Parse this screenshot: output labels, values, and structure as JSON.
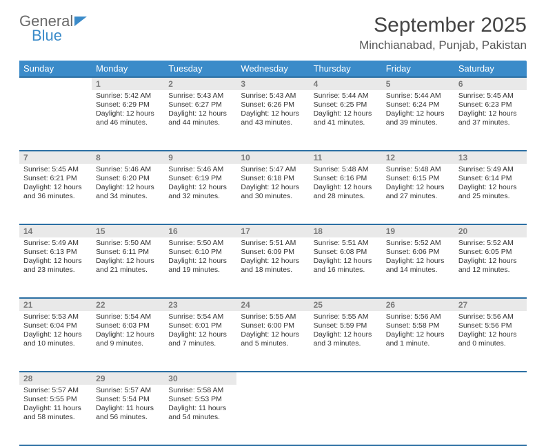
{
  "brand": {
    "word1": "General",
    "word2": "Blue"
  },
  "header": {
    "title": "September 2025",
    "location": "Minchianabad, Punjab, Pakistan"
  },
  "colors": {
    "header_bg": "#3b8bc9",
    "header_border": "#2b6fa3",
    "daynum_bg": "#e9e9e9",
    "daynum_text": "#7a7a7a",
    "body_text": "#333333"
  },
  "weekdays": [
    "Sunday",
    "Monday",
    "Tuesday",
    "Wednesday",
    "Thursday",
    "Friday",
    "Saturday"
  ],
  "weeks": [
    [
      null,
      {
        "n": "1",
        "sunrise": "Sunrise: 5:42 AM",
        "sunset": "Sunset: 6:29 PM",
        "day1": "Daylight: 12 hours",
        "day2": "and 46 minutes."
      },
      {
        "n": "2",
        "sunrise": "Sunrise: 5:43 AM",
        "sunset": "Sunset: 6:27 PM",
        "day1": "Daylight: 12 hours",
        "day2": "and 44 minutes."
      },
      {
        "n": "3",
        "sunrise": "Sunrise: 5:43 AM",
        "sunset": "Sunset: 6:26 PM",
        "day1": "Daylight: 12 hours",
        "day2": "and 43 minutes."
      },
      {
        "n": "4",
        "sunrise": "Sunrise: 5:44 AM",
        "sunset": "Sunset: 6:25 PM",
        "day1": "Daylight: 12 hours",
        "day2": "and 41 minutes."
      },
      {
        "n": "5",
        "sunrise": "Sunrise: 5:44 AM",
        "sunset": "Sunset: 6:24 PM",
        "day1": "Daylight: 12 hours",
        "day2": "and 39 minutes."
      },
      {
        "n": "6",
        "sunrise": "Sunrise: 5:45 AM",
        "sunset": "Sunset: 6:23 PM",
        "day1": "Daylight: 12 hours",
        "day2": "and 37 minutes."
      }
    ],
    [
      {
        "n": "7",
        "sunrise": "Sunrise: 5:45 AM",
        "sunset": "Sunset: 6:21 PM",
        "day1": "Daylight: 12 hours",
        "day2": "and 36 minutes."
      },
      {
        "n": "8",
        "sunrise": "Sunrise: 5:46 AM",
        "sunset": "Sunset: 6:20 PM",
        "day1": "Daylight: 12 hours",
        "day2": "and 34 minutes."
      },
      {
        "n": "9",
        "sunrise": "Sunrise: 5:46 AM",
        "sunset": "Sunset: 6:19 PM",
        "day1": "Daylight: 12 hours",
        "day2": "and 32 minutes."
      },
      {
        "n": "10",
        "sunrise": "Sunrise: 5:47 AM",
        "sunset": "Sunset: 6:18 PM",
        "day1": "Daylight: 12 hours",
        "day2": "and 30 minutes."
      },
      {
        "n": "11",
        "sunrise": "Sunrise: 5:48 AM",
        "sunset": "Sunset: 6:16 PM",
        "day1": "Daylight: 12 hours",
        "day2": "and 28 minutes."
      },
      {
        "n": "12",
        "sunrise": "Sunrise: 5:48 AM",
        "sunset": "Sunset: 6:15 PM",
        "day1": "Daylight: 12 hours",
        "day2": "and 27 minutes."
      },
      {
        "n": "13",
        "sunrise": "Sunrise: 5:49 AM",
        "sunset": "Sunset: 6:14 PM",
        "day1": "Daylight: 12 hours",
        "day2": "and 25 minutes."
      }
    ],
    [
      {
        "n": "14",
        "sunrise": "Sunrise: 5:49 AM",
        "sunset": "Sunset: 6:13 PM",
        "day1": "Daylight: 12 hours",
        "day2": "and 23 minutes."
      },
      {
        "n": "15",
        "sunrise": "Sunrise: 5:50 AM",
        "sunset": "Sunset: 6:11 PM",
        "day1": "Daylight: 12 hours",
        "day2": "and 21 minutes."
      },
      {
        "n": "16",
        "sunrise": "Sunrise: 5:50 AM",
        "sunset": "Sunset: 6:10 PM",
        "day1": "Daylight: 12 hours",
        "day2": "and 19 minutes."
      },
      {
        "n": "17",
        "sunrise": "Sunrise: 5:51 AM",
        "sunset": "Sunset: 6:09 PM",
        "day1": "Daylight: 12 hours",
        "day2": "and 18 minutes."
      },
      {
        "n": "18",
        "sunrise": "Sunrise: 5:51 AM",
        "sunset": "Sunset: 6:08 PM",
        "day1": "Daylight: 12 hours",
        "day2": "and 16 minutes."
      },
      {
        "n": "19",
        "sunrise": "Sunrise: 5:52 AM",
        "sunset": "Sunset: 6:06 PM",
        "day1": "Daylight: 12 hours",
        "day2": "and 14 minutes."
      },
      {
        "n": "20",
        "sunrise": "Sunrise: 5:52 AM",
        "sunset": "Sunset: 6:05 PM",
        "day1": "Daylight: 12 hours",
        "day2": "and 12 minutes."
      }
    ],
    [
      {
        "n": "21",
        "sunrise": "Sunrise: 5:53 AM",
        "sunset": "Sunset: 6:04 PM",
        "day1": "Daylight: 12 hours",
        "day2": "and 10 minutes."
      },
      {
        "n": "22",
        "sunrise": "Sunrise: 5:54 AM",
        "sunset": "Sunset: 6:03 PM",
        "day1": "Daylight: 12 hours",
        "day2": "and 9 minutes."
      },
      {
        "n": "23",
        "sunrise": "Sunrise: 5:54 AM",
        "sunset": "Sunset: 6:01 PM",
        "day1": "Daylight: 12 hours",
        "day2": "and 7 minutes."
      },
      {
        "n": "24",
        "sunrise": "Sunrise: 5:55 AM",
        "sunset": "Sunset: 6:00 PM",
        "day1": "Daylight: 12 hours",
        "day2": "and 5 minutes."
      },
      {
        "n": "25",
        "sunrise": "Sunrise: 5:55 AM",
        "sunset": "Sunset: 5:59 PM",
        "day1": "Daylight: 12 hours",
        "day2": "and 3 minutes."
      },
      {
        "n": "26",
        "sunrise": "Sunrise: 5:56 AM",
        "sunset": "Sunset: 5:58 PM",
        "day1": "Daylight: 12 hours",
        "day2": "and 1 minute."
      },
      {
        "n": "27",
        "sunrise": "Sunrise: 5:56 AM",
        "sunset": "Sunset: 5:56 PM",
        "day1": "Daylight: 12 hours",
        "day2": "and 0 minutes."
      }
    ],
    [
      {
        "n": "28",
        "sunrise": "Sunrise: 5:57 AM",
        "sunset": "Sunset: 5:55 PM",
        "day1": "Daylight: 11 hours",
        "day2": "and 58 minutes."
      },
      {
        "n": "29",
        "sunrise": "Sunrise: 5:57 AM",
        "sunset": "Sunset: 5:54 PM",
        "day1": "Daylight: 11 hours",
        "day2": "and 56 minutes."
      },
      {
        "n": "30",
        "sunrise": "Sunrise: 5:58 AM",
        "sunset": "Sunset: 5:53 PM",
        "day1": "Daylight: 11 hours",
        "day2": "and 54 minutes."
      },
      null,
      null,
      null,
      null
    ]
  ]
}
